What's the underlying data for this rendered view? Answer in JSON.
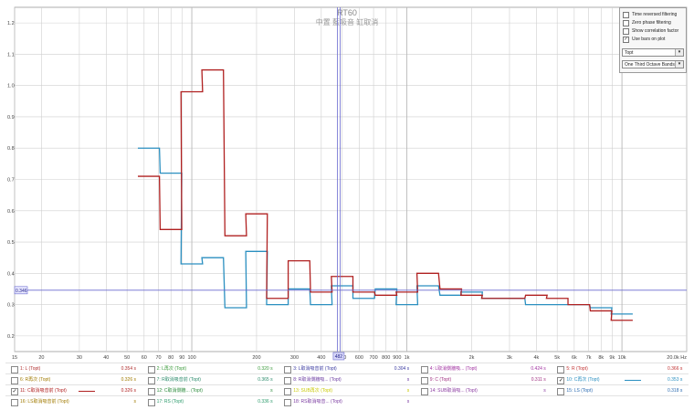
{
  "colors": {
    "red_trace": "#b02020",
    "blue_trace": "#2a8fc0",
    "grid": "#cfcfcf",
    "cursor": "#6a6ad0"
  },
  "plot": {
    "title": "RT60",
    "subtitle": "中置 藍吸音 缸取消",
    "cursor_value": "0.346",
    "cursor_freq": "482",
    "freq_unit": "20.0k Hz"
  },
  "chart_data": {
    "type": "step",
    "x_scale": "log",
    "xlim": [
      15,
      20000
    ],
    "ylim": [
      0.15,
      1.25
    ],
    "y_ticks": [
      0.2,
      0.3,
      0.4,
      0.5,
      0.6,
      0.7,
      0.8,
      0.9,
      1.0,
      1.1,
      1.2
    ],
    "y_tick_labels": [
      "0.2",
      "0.3",
      "0.4",
      "0.5",
      "0.6",
      "0.7",
      "0.8",
      "0.9",
      "1.0",
      "1.1",
      "1.2"
    ],
    "x_ticks": [
      15,
      20,
      30,
      40,
      50,
      60,
      70,
      80,
      90,
      100,
      200,
      300,
      400,
      500,
      600,
      700,
      800,
      900,
      1000,
      2000,
      3000,
      4000,
      5000,
      6000,
      7000,
      8000,
      9000,
      10000,
      20000
    ],
    "x_tick_labels": [
      "15",
      "20",
      "30",
      "40",
      "50",
      "60",
      "70",
      "80",
      "90",
      "100",
      "200",
      "300",
      "400",
      "500",
      "600",
      "700",
      "800",
      "900",
      "1k",
      "2k",
      "3k",
      "4k",
      "5k",
      "6k",
      "7k",
      "8k",
      "9k",
      "10k",
      "20.0k Hz"
    ],
    "bands": [
      63,
      80,
      100,
      125,
      160,
      200,
      250,
      315,
      400,
      500,
      630,
      800,
      1000,
      1250,
      1600,
      2000,
      2500,
      3150,
      4000,
      5000,
      6300,
      8000,
      10000
    ],
    "series": [
      {
        "name": "11: C取消吸音前 (Topt)",
        "color": "#b02020",
        "values": [
          0.71,
          0.54,
          0.98,
          1.05,
          0.52,
          0.59,
          0.32,
          0.44,
          0.34,
          0.39,
          0.34,
          0.33,
          0.34,
          0.4,
          0.35,
          0.33,
          0.32,
          0.32,
          0.33,
          0.32,
          0.3,
          0.28,
          0.25
        ]
      },
      {
        "name": "10: C再次 (Topt)",
        "color": "#2a8fc0",
        "values": [
          0.8,
          0.72,
          0.43,
          0.45,
          0.29,
          0.47,
          0.3,
          0.35,
          0.3,
          0.36,
          0.32,
          0.35,
          0.3,
          0.36,
          0.33,
          0.34,
          0.32,
          0.32,
          0.3,
          0.3,
          0.3,
          0.29,
          0.27
        ]
      }
    ]
  },
  "controls": {
    "options": [
      {
        "label": "Time reversed filtering",
        "checked": ""
      },
      {
        "label": "Zero phase filtering",
        "checked": ""
      },
      {
        "label": "Show correlation factor",
        "checked": ""
      },
      {
        "label": "Use bars on plot",
        "checked": "✓"
      }
    ],
    "metric_select": "Topt",
    "band_select": "One Third Octave Bands",
    "dropdown_arrow": "▾"
  },
  "legend": {
    "rows": [
      [
        {
          "name": "1: L (Topt)",
          "value": "0.354 s",
          "color": "#b03030",
          "checked": ""
        },
        {
          "name": "2: L再次 (Topt)",
          "value": "0.320 s",
          "color": "#3a9a3a",
          "checked": ""
        },
        {
          "name": "3: L取消吸音前 (Topt)",
          "value": "0.304 s",
          "color": "#3a3aa0",
          "checked": ""
        },
        {
          "name": "4: L取消側牆吸... (Topt)",
          "value": "0.424 s",
          "color": "#a030a0",
          "checked": ""
        },
        {
          "name": "5: R (Topt)",
          "value": "0.366 s",
          "color": "#c03030",
          "checked": ""
        }
      ],
      [
        {
          "name": "6: R再次 (Topt)",
          "value": "0.326 s",
          "color": "#a07a00",
          "checked": ""
        },
        {
          "name": "7: R取消吸音前 (Topt)",
          "value": "0.365 s",
          "color": "#2a8a6a",
          "checked": ""
        },
        {
          "name": "8: R取消側牆吸... (Topt)",
          "value": "s",
          "color": "#6a3aa0",
          "checked": ""
        },
        {
          "name": "9: C (Topt)",
          "value": "0.311 s",
          "color": "#a03080",
          "checked": ""
        },
        {
          "name": "10: C再次 (Topt)",
          "value": "0.353 s",
          "color": "#2a8fc0",
          "checked": "✓"
        }
      ],
      [
        {
          "name": "11: C取消吸音前 (Topt)",
          "value": "0.326 s",
          "color": "#b02020",
          "checked": "✓"
        },
        {
          "name": "12: C取消側牆... (Topt)",
          "value": "s",
          "color": "#2a8a3a",
          "checked": ""
        },
        {
          "name": "13: SUB再次 (Topt)",
          "value": "s",
          "color": "#c8c800",
          "checked": ""
        },
        {
          "name": "14: SUB取消吸... (Topt)",
          "value": "s",
          "color": "#8a3aa0",
          "checked": ""
        },
        {
          "name": "15: LS (Topt)",
          "value": "0.318 s",
          "color": "#2a6ab0",
          "checked": ""
        }
      ],
      [
        {
          "name": "16: LS取消吸音前 (Topt)",
          "value": "s",
          "color": "#a07a00",
          "checked": ""
        },
        {
          "name": "17: RS (Topt)",
          "value": "0.336 s",
          "color": "#2a9a6a",
          "checked": ""
        },
        {
          "name": "18: RS取消吸音... (Topt)",
          "value": "s",
          "color": "#7a3aa0",
          "checked": ""
        },
        {
          "name": "",
          "value": "",
          "color": "",
          "checked": ""
        },
        {
          "name": "",
          "value": "",
          "color": "",
          "checked": ""
        }
      ]
    ]
  }
}
